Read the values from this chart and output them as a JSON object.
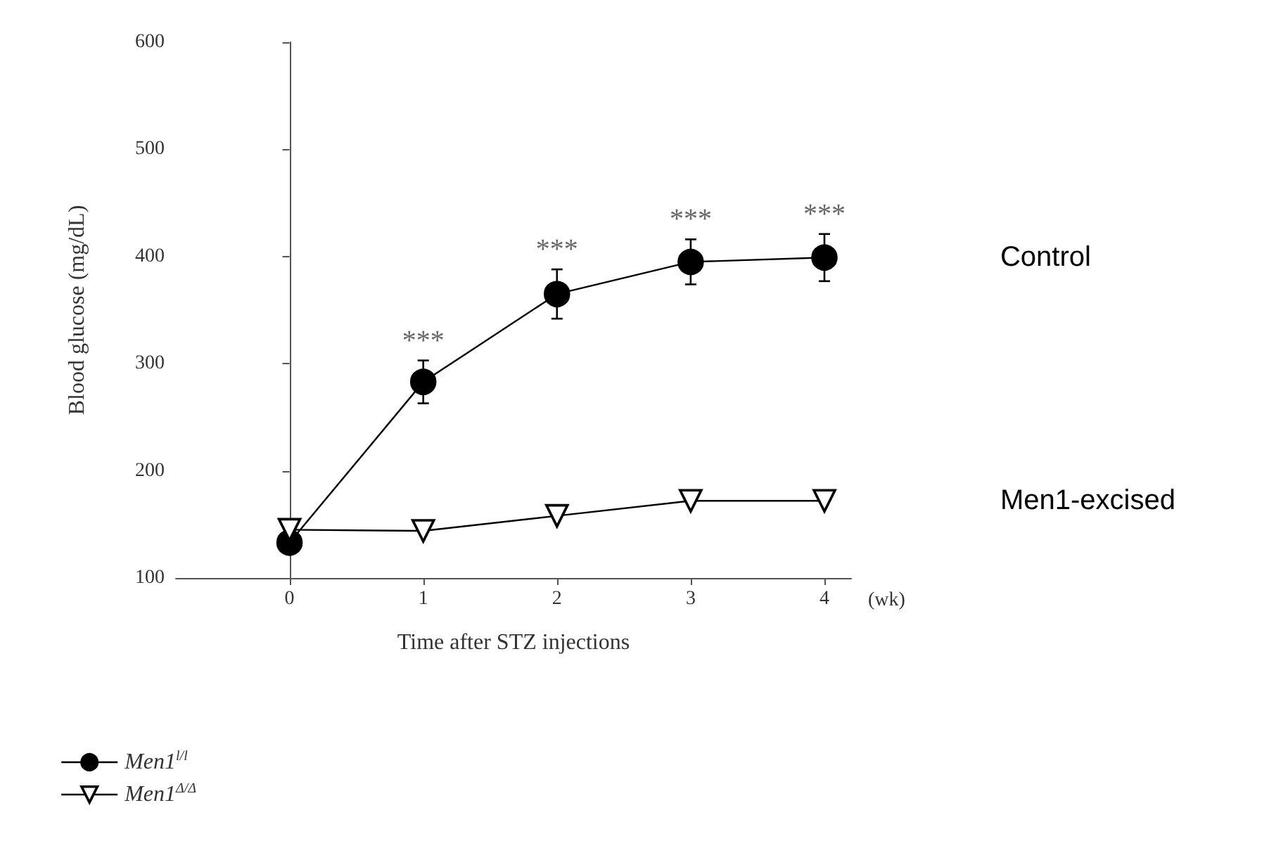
{
  "chart_data": {
    "type": "line",
    "xlabel": "Time after STZ injections",
    "ylabel": "Blood glucose (mg/dL)",
    "x": [
      0,
      1,
      2,
      3,
      4
    ],
    "series": [
      {
        "name": "Men1$^{l/l}$",
        "color": "#000000",
        "marker": "circle",
        "values": [
          133,
          283,
          365,
          395,
          399
        ],
        "errors": [
          null,
          20,
          23,
          21,
          22
        ]
      },
      {
        "name": "Men1$^{Δ/Δ}$",
        "color": "#000000",
        "marker": "triangle",
        "values": [
          145,
          144,
          158,
          172,
          172
        ]
      }
    ],
    "xlim": [
      -0.85,
      4.2
    ],
    "xticks": [
      0,
      1,
      2,
      3,
      4
    ],
    "ylim": [
      100,
      600
    ],
    "yticks": [
      100,
      200,
      300,
      400,
      500,
      600
    ],
    "legend": "bottom left",
    "line_style": "solid",
    "annotations": [
      "(wk)",
      {
        "text": "***",
        "x": 1,
        "y": 303
      },
      {
        "text": "***",
        "x": 2,
        "y": 388
      },
      {
        "text": "***",
        "x": 3,
        "y": 416
      },
      {
        "text": "***",
        "x": 4,
        "y": 421
      },
      "Control",
      "Men1-excised"
    ]
  }
}
